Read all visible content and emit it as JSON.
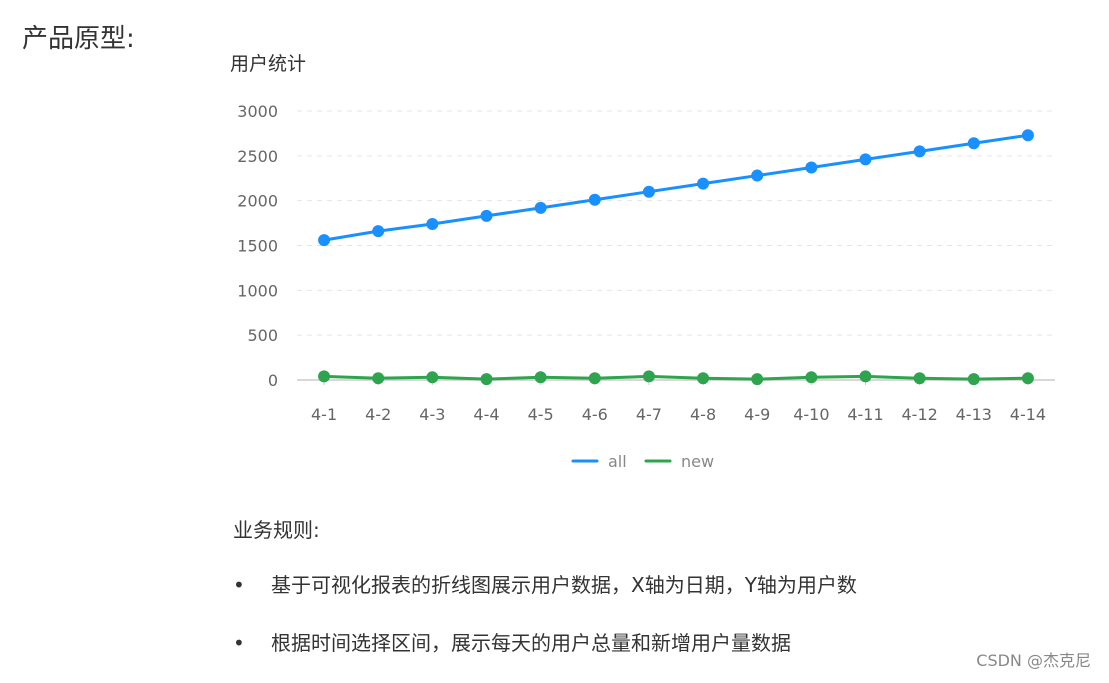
{
  "page": {
    "heading": "产品原型:",
    "rules_title": "业务规则:",
    "rules": [
      "基于可视化报表的折线图展示用户数据，X轴为日期，Y轴为用户数",
      "根据时间选择区间，展示每天的用户总量和新增用户量数据"
    ],
    "bullet": "•",
    "watermark": "CSDN @杰克尼"
  },
  "colors": {
    "all": "#1890ff",
    "new": "#2ea44f",
    "grid": "#e5e5e5",
    "axis": "#cccccc"
  },
  "chart_data": {
    "type": "line",
    "title": "用户统计",
    "categories": [
      "4-1",
      "4-2",
      "4-3",
      "4-4",
      "4-5",
      "4-6",
      "4-7",
      "4-8",
      "4-9",
      "4-10",
      "4-11",
      "4-12",
      "4-13",
      "4-14"
    ],
    "series": [
      {
        "name": "all",
        "values": [
          1560,
          1660,
          1740,
          1830,
          1920,
          2010,
          2100,
          2190,
          2280,
          2370,
          2460,
          2550,
          2640,
          2730
        ]
      },
      {
        "name": "new",
        "values": [
          40,
          20,
          30,
          10,
          30,
          20,
          40,
          20,
          10,
          30,
          40,
          20,
          10,
          20
        ]
      }
    ],
    "yticks": [
      "3000",
      "2500",
      "2000",
      "1500",
      "1000",
      "500",
      "0"
    ],
    "ylim": [
      0,
      3000
    ],
    "grid": true,
    "legend_position": "bottom-center"
  }
}
